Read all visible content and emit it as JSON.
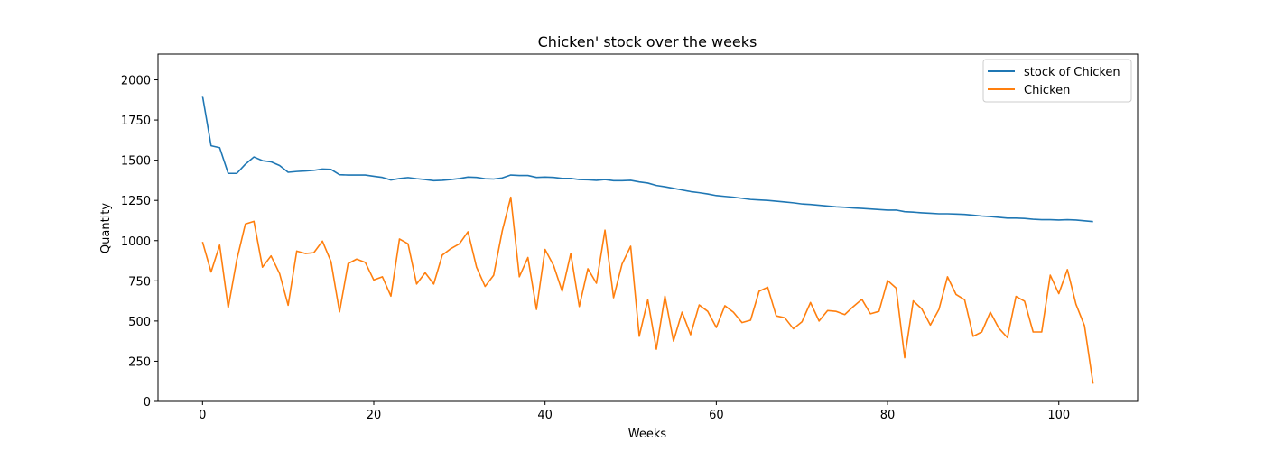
{
  "chart_data": {
    "type": "line",
    "title": "Chicken' stock over the weeks",
    "xlabel": "Weeks",
    "ylabel": "Quantity",
    "xlim": [
      -5.2,
      109.2
    ],
    "ylim": [
      0,
      2160
    ],
    "xticks": [
      0,
      20,
      40,
      60,
      80,
      100
    ],
    "yticks": [
      0,
      250,
      500,
      750,
      1000,
      1250,
      1500,
      1750,
      2000
    ],
    "grid": false,
    "legend_position": "top-right",
    "series": [
      {
        "name": "stock of Chicken",
        "color": "#1f77b4",
        "values": [
          1900,
          1590,
          1578,
          1418,
          1418,
          1475,
          1520,
          1497,
          1490,
          1467,
          1425,
          1430,
          1433,
          1437,
          1445,
          1443,
          1410,
          1408,
          1408,
          1408,
          1400,
          1393,
          1377,
          1386,
          1392,
          1385,
          1380,
          1373,
          1375,
          1380,
          1386,
          1395,
          1393,
          1385,
          1383,
          1390,
          1408,
          1405,
          1405,
          1393,
          1395,
          1393,
          1387,
          1387,
          1380,
          1378,
          1375,
          1380,
          1373,
          1373,
          1375,
          1365,
          1358,
          1343,
          1335,
          1325,
          1315,
          1305,
          1298,
          1290,
          1280,
          1275,
          1270,
          1263,
          1256,
          1253,
          1250,
          1245,
          1240,
          1235,
          1228,
          1225,
          1220,
          1215,
          1210,
          1207,
          1203,
          1200,
          1197,
          1193,
          1190,
          1190,
          1180,
          1177,
          1173,
          1170,
          1167,
          1167,
          1165,
          1163,
          1158,
          1153,
          1150,
          1145,
          1140,
          1140,
          1138,
          1133,
          1130,
          1130,
          1128,
          1130,
          1128,
          1123,
          1118
        ]
      },
      {
        "name": "Chicken",
        "color": "#ff7f0e",
        "values": [
          992,
          805,
          972,
          582,
          880,
          1103,
          1120,
          835,
          905,
          795,
          598,
          935,
          920,
          925,
          997,
          870,
          557,
          857,
          885,
          865,
          755,
          775,
          655,
          1010,
          980,
          730,
          800,
          730,
          910,
          950,
          980,
          1055,
          835,
          715,
          785,
          1060,
          1270,
          775,
          895,
          572,
          945,
          845,
          685,
          920,
          590,
          825,
          735,
          1065,
          645,
          855,
          965,
          405,
          632,
          325,
          655,
          375,
          555,
          415,
          600,
          560,
          460,
          595,
          555,
          490,
          505,
          685,
          710,
          532,
          520,
          452,
          495,
          615,
          500,
          565,
          560,
          540,
          590,
          635,
          545,
          560,
          752,
          705,
          272,
          625,
          575,
          475,
          572,
          775,
          665,
          632,
          405,
          432,
          555,
          455,
          397,
          653,
          623,
          432,
          432,
          785,
          670,
          820,
          605,
          470,
          110
        ]
      }
    ]
  }
}
